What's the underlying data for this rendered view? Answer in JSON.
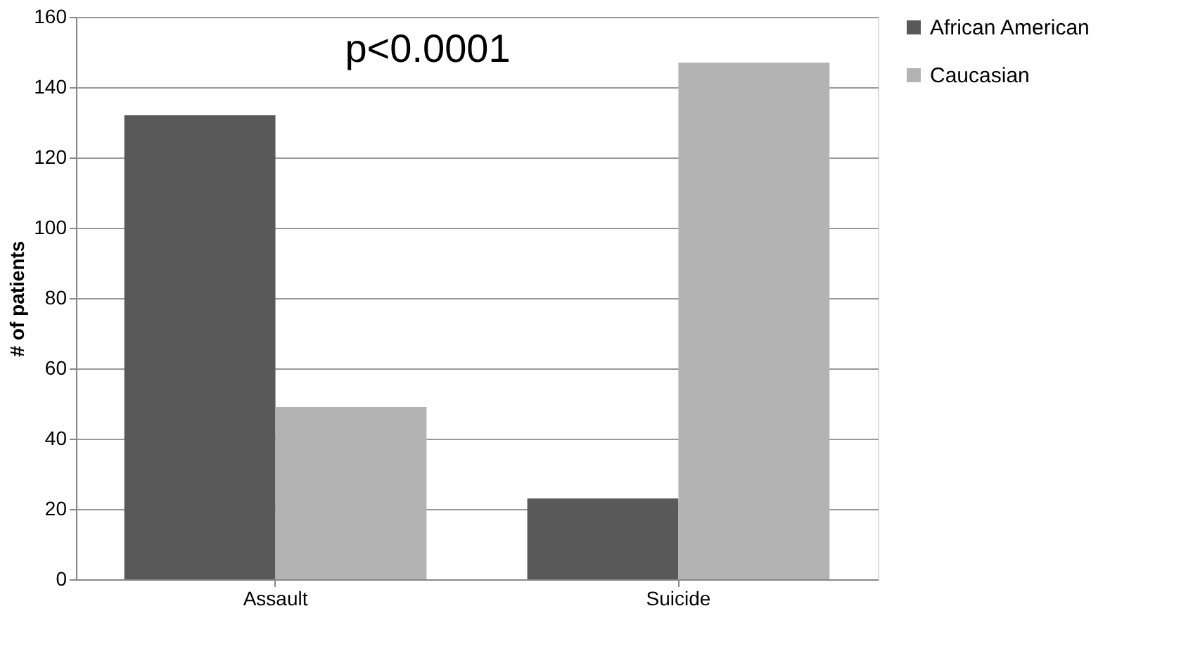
{
  "chart_data": {
    "type": "bar",
    "ylabel": "# of patients",
    "categories": [
      "Assault",
      "Suicide"
    ],
    "series": [
      {
        "name": "African American",
        "color": "#595959",
        "values": [
          132,
          23
        ]
      },
      {
        "name": "Caucasian",
        "color": "#b3b3b3",
        "values": [
          49,
          147
        ]
      }
    ],
    "ylim": [
      0,
      160
    ],
    "yticks": [
      0,
      20,
      40,
      60,
      80,
      100,
      120,
      140,
      160
    ],
    "grid": "y",
    "legend": "top right",
    "annotations": [
      "p<0.0001"
    ]
  }
}
